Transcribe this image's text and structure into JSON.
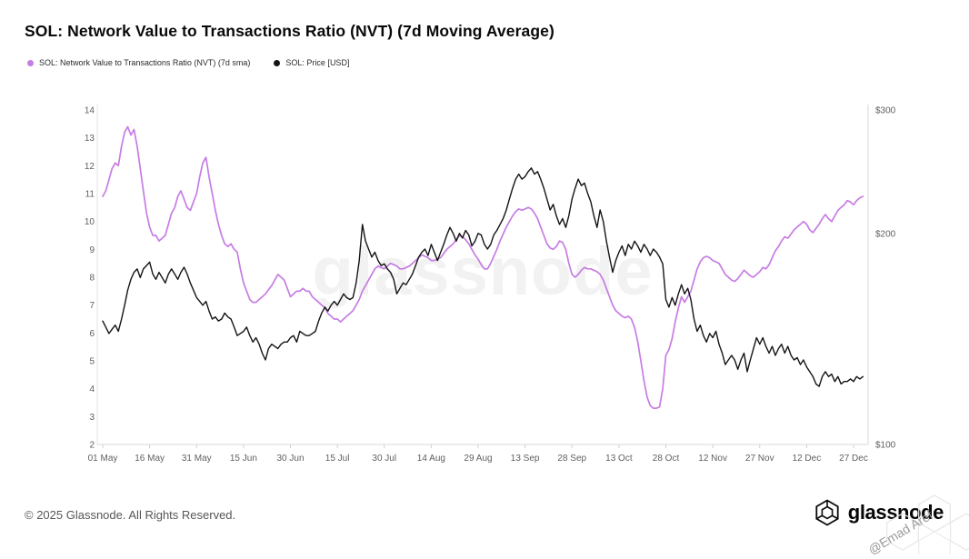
{
  "header": {
    "title": "SOL: Network Value to Transactions Ratio (NVT) (7d Moving Average)"
  },
  "chart_data": {
    "type": "line",
    "title": "SOL: Network Value to Transactions Ratio (NVT) (7d Moving Average)",
    "x_axis": {
      "tick_labels": [
        "01 May",
        "16 May",
        "31 May",
        "15 Jun",
        "30 Jun",
        "15 Jul",
        "30 Jul",
        "14 Aug",
        "29 Aug",
        "13 Sep",
        "28 Sep",
        "13 Oct",
        "28 Oct",
        "12 Nov",
        "27 Nov",
        "12 Dec",
        "27 Dec"
      ],
      "tick_days": [
        0,
        15,
        30,
        45,
        60,
        75,
        90,
        105,
        120,
        135,
        150,
        165,
        180,
        195,
        210,
        225,
        240
      ],
      "total_days": 243
    },
    "left_axis": {
      "scale": "linear",
      "min": 2,
      "max": 14,
      "ticks": [
        14,
        13,
        12,
        11,
        10,
        9,
        8,
        7,
        6,
        5,
        4,
        3,
        2
      ]
    },
    "right_axis": {
      "scale": "log",
      "min": 100,
      "max": 300,
      "ticks": [
        300,
        200,
        100
      ],
      "tick_labels": [
        "$300",
        "$200",
        "$100"
      ]
    },
    "grid": "off",
    "legend_position": "top-left",
    "series": [
      {
        "name": "SOL: Network Value to Transactions Ratio (NVT) (7d sma)",
        "axis": "left",
        "color": "#c77ce3",
        "stroke_width": 1.7,
        "x_step_days": 1,
        "values": [
          10.9,
          11.1,
          11.5,
          11.9,
          12.1,
          12.0,
          12.7,
          13.2,
          13.4,
          13.1,
          13.3,
          12.7,
          11.9,
          11.1,
          10.3,
          9.8,
          9.5,
          9.5,
          9.3,
          9.4,
          9.5,
          9.9,
          10.3,
          10.5,
          10.9,
          11.1,
          10.8,
          10.5,
          10.4,
          10.7,
          11.0,
          11.6,
          12.1,
          12.3,
          11.6,
          11.0,
          10.4,
          9.9,
          9.5,
          9.2,
          9.1,
          9.2,
          9.0,
          8.9,
          8.3,
          7.8,
          7.5,
          7.2,
          7.1,
          7.1,
          7.2,
          7.3,
          7.4,
          7.55,
          7.7,
          7.9,
          8.1,
          8.0,
          7.9,
          7.6,
          7.3,
          7.4,
          7.5,
          7.5,
          7.6,
          7.5,
          7.5,
          7.3,
          7.2,
          7.1,
          7.0,
          6.9,
          6.7,
          6.6,
          6.5,
          6.5,
          6.4,
          6.5,
          6.6,
          6.7,
          6.8,
          7.0,
          7.2,
          7.5,
          7.7,
          7.9,
          8.1,
          8.3,
          8.4,
          8.35,
          8.3,
          8.4,
          8.5,
          8.45,
          8.4,
          8.3,
          8.3,
          8.35,
          8.4,
          8.5,
          8.6,
          8.7,
          8.8,
          8.75,
          8.7,
          8.6,
          8.6,
          8.65,
          8.7,
          8.85,
          9.0,
          9.1,
          9.2,
          9.35,
          9.5,
          9.45,
          9.35,
          9.2,
          9.0,
          8.8,
          8.65,
          8.45,
          8.3,
          8.3,
          8.5,
          8.75,
          9.0,
          9.3,
          9.55,
          9.8,
          10.0,
          10.2,
          10.35,
          10.45,
          10.4,
          10.45,
          10.5,
          10.45,
          10.3,
          10.1,
          9.8,
          9.5,
          9.2,
          9.05,
          9.0,
          9.1,
          9.3,
          9.25,
          9.0,
          8.5,
          8.1,
          8.0,
          8.1,
          8.25,
          8.35,
          8.3,
          8.3,
          8.25,
          8.2,
          8.1,
          7.9,
          7.6,
          7.3,
          7.0,
          6.8,
          6.7,
          6.6,
          6.55,
          6.6,
          6.5,
          6.2,
          5.7,
          5.0,
          4.3,
          3.7,
          3.4,
          3.3,
          3.3,
          3.35,
          4.0,
          5.2,
          5.4,
          5.8,
          6.4,
          6.9,
          7.3,
          7.1,
          7.3,
          7.5,
          7.9,
          8.3,
          8.55,
          8.7,
          8.75,
          8.7,
          8.6,
          8.55,
          8.5,
          8.3,
          8.1,
          8.0,
          7.9,
          7.85,
          7.95,
          8.1,
          8.25,
          8.15,
          8.05,
          8.0,
          8.1,
          8.2,
          8.35,
          8.3,
          8.45,
          8.7,
          8.95,
          9.1,
          9.3,
          9.45,
          9.4,
          9.55,
          9.7,
          9.8,
          9.9,
          10.0,
          9.9,
          9.7,
          9.6,
          9.75,
          9.9,
          10.1,
          10.25,
          10.1,
          10.0,
          10.2,
          10.4,
          10.5,
          10.6,
          10.75,
          10.7,
          10.6,
          10.75,
          10.85,
          10.9
        ]
      },
      {
        "name": "SOL: Price [USD]",
        "axis": "right",
        "color": "#141414",
        "stroke_width": 1.4,
        "x_step_days": 1,
        "values": [
          150,
          147,
          144,
          146,
          148,
          145,
          151,
          158,
          166,
          172,
          176,
          178,
          173,
          178,
          180,
          182,
          175,
          172,
          176,
          173,
          170,
          175,
          178,
          175,
          172,
          176,
          179,
          175,
          170,
          166,
          162,
          160,
          158,
          160,
          155,
          151,
          152,
          150,
          151,
          154,
          152,
          151,
          147,
          143,
          144,
          145,
          147,
          143,
          140,
          142,
          139,
          135,
          132,
          137,
          139,
          138,
          137,
          139,
          140,
          140,
          142,
          143,
          140,
          145,
          144,
          143,
          143,
          144,
          145,
          150,
          154,
          157,
          155,
          158,
          160,
          158,
          161,
          164,
          162,
          161,
          162,
          170,
          183,
          206,
          195,
          190,
          185,
          188,
          183,
          180,
          181,
          178,
          176,
          172,
          164,
          167,
          170,
          169,
          172,
          175,
          180,
          185,
          188,
          190,
          186,
          193,
          188,
          183,
          188,
          193,
          199,
          204,
          200,
          195,
          200,
          197,
          202,
          199,
          192,
          195,
          200,
          199,
          193,
          190,
          193,
          199,
          202,
          206,
          210,
          216,
          224,
          232,
          239,
          243,
          239,
          241,
          245,
          248,
          243,
          245,
          239,
          232,
          224,
          216,
          220,
          212,
          206,
          210,
          204,
          212,
          224,
          232,
          239,
          234,
          236,
          228,
          222,
          212,
          204,
          216,
          208,
          195,
          185,
          176,
          183,
          188,
          192,
          186,
          193,
          190,
          195,
          192,
          188,
          193,
          190,
          186,
          190,
          188,
          185,
          181,
          161,
          157,
          162,
          158,
          164,
          169,
          164,
          167,
          161,
          151,
          145,
          148,
          143,
          140,
          144,
          142,
          145,
          139,
          135,
          130,
          132,
          134,
          132,
          128,
          132,
          135,
          127,
          132,
          137,
          142,
          139,
          142,
          138,
          135,
          138,
          134,
          137,
          139,
          135,
          138,
          134,
          132,
          133,
          130,
          132,
          129,
          127,
          125,
          122,
          121,
          125,
          127,
          125,
          126,
          123,
          125,
          122,
          123,
          123,
          124,
          123,
          125,
          124,
          125
        ]
      }
    ]
  },
  "watermark": {
    "text": "glassnode"
  },
  "footer": {
    "copyright": "© 2025 Glassnode. All Rights Reserved.",
    "brand": "glassnode"
  },
  "overlay": {
    "text": "@Emad Aref"
  }
}
